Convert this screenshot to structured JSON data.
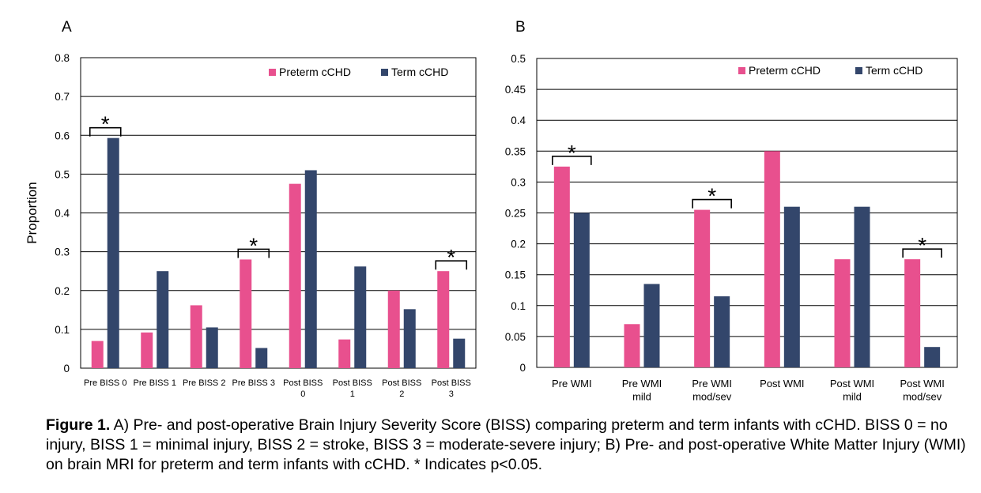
{
  "colors": {
    "preterm": "#E8508E",
    "term": "#33466B"
  },
  "chart_data": [
    {
      "type": "bar",
      "panel_label": "A",
      "ylabel": "Proportion",
      "ylim": [
        0,
        0.8
      ],
      "yticks": [
        0,
        0.1,
        0.2,
        0.3,
        0.4,
        0.5,
        0.6,
        0.7,
        0.8
      ],
      "ytick_labels": [
        "0",
        "0.1",
        "0.2",
        "0.3",
        "0.4",
        "0.5",
        "0.6",
        "0.7",
        "0.8"
      ],
      "grid": true,
      "legend_position": "top-right",
      "categories": [
        [
          "Pre BISS 0"
        ],
        [
          "Pre BISS 1"
        ],
        [
          "Pre BISS 2"
        ],
        [
          "Pre BISS 3"
        ],
        [
          "Post BISS",
          "0"
        ],
        [
          "Post BISS",
          "1"
        ],
        [
          "Post BISS",
          "2"
        ],
        [
          "Post BISS",
          "3"
        ]
      ],
      "series": [
        {
          "name": "Preterm cCHD",
          "values": [
            0.07,
            0.092,
            0.162,
            0.28,
            0.475,
            0.074,
            0.2,
            0.25
          ]
        },
        {
          "name": "Term cCHD",
          "values": [
            0.593,
            0.25,
            0.105,
            0.052,
            0.51,
            0.262,
            0.152,
            0.076
          ]
        }
      ],
      "significance": {
        "symbol": "*",
        "categories": [
          0,
          3,
          7
        ]
      }
    },
    {
      "type": "bar",
      "panel_label": "B",
      "ylabel": "",
      "ylim": [
        0,
        0.5
      ],
      "yticks": [
        0,
        0.05,
        0.1,
        0.15,
        0.2,
        0.25,
        0.3,
        0.35,
        0.4,
        0.45,
        0.5
      ],
      "ytick_labels": [
        "0",
        "0.05",
        "0.1",
        "0.15",
        "0.2",
        "0.25",
        "0.3",
        "0.35",
        "0.4",
        "0.45",
        "0.5"
      ],
      "grid": true,
      "legend_position": "top-right",
      "categories": [
        [
          "Pre WMI"
        ],
        [
          "Pre WMI",
          "mild"
        ],
        [
          "Pre WMI",
          "mod/sev"
        ],
        [
          "Post WMI"
        ],
        [
          "Post WMI",
          "mild"
        ],
        [
          "Post WMI",
          "mod/sev"
        ]
      ],
      "series": [
        {
          "name": "Preterm cCHD",
          "values": [
            0.325,
            0.07,
            0.255,
            0.35,
            0.175,
            0.175
          ]
        },
        {
          "name": "Term cCHD",
          "values": [
            0.25,
            0.135,
            0.115,
            0.26,
            0.26,
            0.033
          ]
        }
      ],
      "significance": {
        "symbol": "*",
        "categories": [
          0,
          2,
          5
        ]
      }
    }
  ],
  "caption": {
    "lead": "Figure 1.",
    "text": " A) Pre- and post-operative Brain Injury Severity Score (BISS) comparing preterm and term infants with cCHD. BISS 0 = no injury, BISS 1 = minimal injury, BISS 2 = stroke, BISS 3 = moderate-severe injury; B) Pre- and post-operative White Matter Injury (WMI) on brain MRI for preterm and term infants with cCHD. * Indicates p<0.05."
  }
}
